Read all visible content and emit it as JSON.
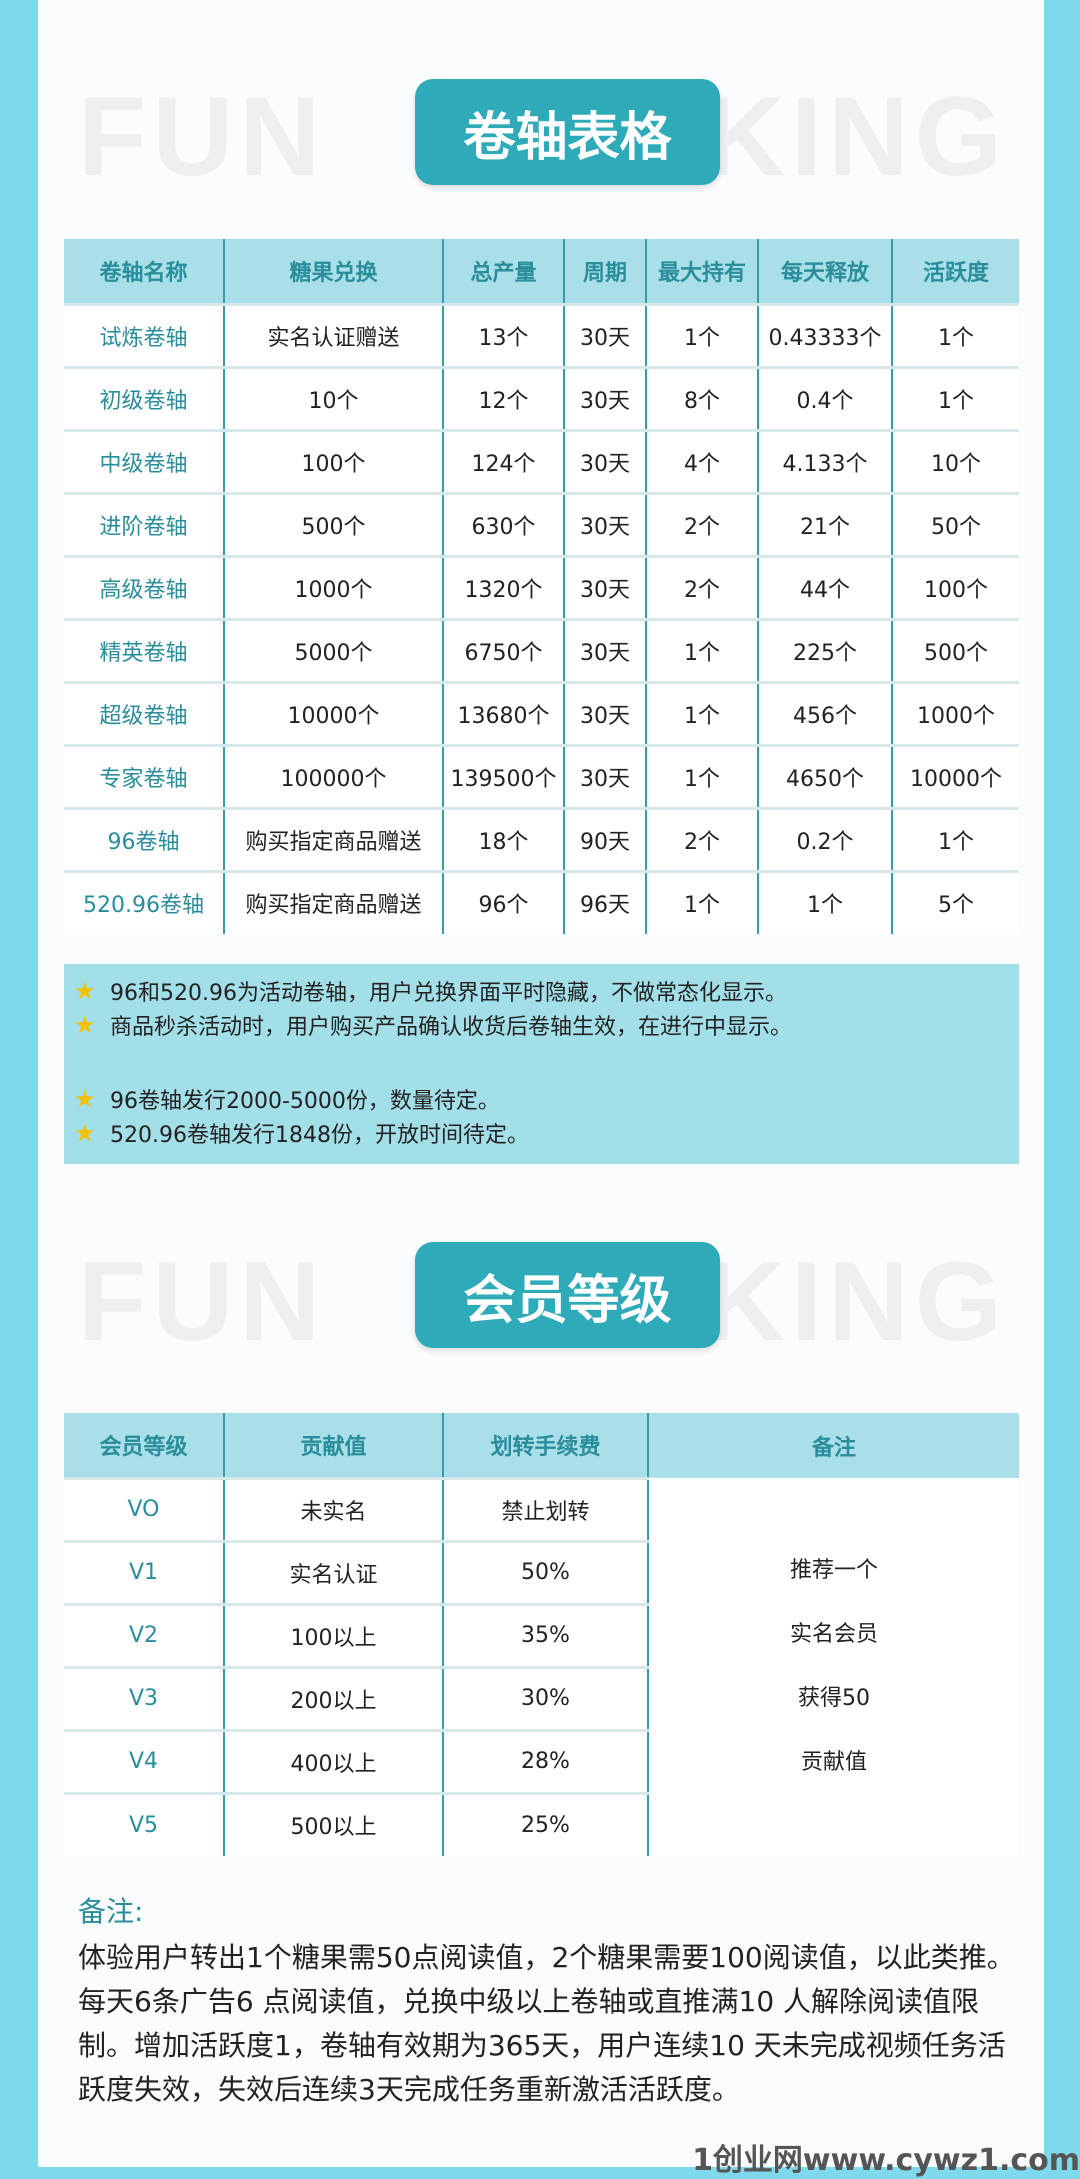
{
  "watermark": {
    "left": "FUN",
    "right": "KING"
  },
  "section1": {
    "title": "卷轴表格",
    "headers": [
      "卷轴名称",
      "糖果兑换",
      "总产量",
      "周期",
      "最大持有",
      "每天释放",
      "活跃度"
    ],
    "rows": [
      [
        "试炼卷轴",
        "实名认证赠送",
        "13个",
        "30天",
        "1个",
        "0.43333个",
        "1个"
      ],
      [
        "初级卷轴",
        "10个",
        "12个",
        "30天",
        "8个",
        "0.4个",
        "1个"
      ],
      [
        "中级卷轴",
        "100个",
        "124个",
        "30天",
        "4个",
        "4.133个",
        "10个"
      ],
      [
        "进阶卷轴",
        "500个",
        "630个",
        "30天",
        "2个",
        "21个",
        "50个"
      ],
      [
        "高级卷轴",
        "1000个",
        "1320个",
        "30天",
        "2个",
        "44个",
        "100个"
      ],
      [
        "精英卷轴",
        "5000个",
        "6750个",
        "30天",
        "1个",
        "225个",
        "500个"
      ],
      [
        "超级卷轴",
        "10000个",
        "13680个",
        "30天",
        "1个",
        "456个",
        "1000个"
      ],
      [
        "专家卷轴",
        "100000个",
        "139500个",
        "30天",
        "1个",
        "4650个",
        "10000个"
      ],
      [
        "96卷轴",
        "购买指定商品赠送",
        "18个",
        "90天",
        "2个",
        "0.2个",
        "1个"
      ],
      [
        "520.96卷轴",
        "购买指定商品赠送",
        "96个",
        "96天",
        "1个",
        "1个",
        "5个"
      ]
    ],
    "notes": [
      "96和520.96为活动卷轴，用户兑换界面平时隐藏，不做常态化显示。",
      "商品秒杀活动时，用户购买产品确认收货后卷轴生效，在进行中显示。",
      "96卷轴发行2000-5000份，数量待定。",
      "520.96卷轴发行1848份，开放时间待定。"
    ]
  },
  "section2": {
    "title": "会员等级",
    "headers": [
      "会员等级",
      "贡献值",
      "划转手续费",
      "备注"
    ],
    "rows": [
      [
        "VO",
        "未实名",
        "禁止划转"
      ],
      [
        "V1",
        "实名认证",
        "50%"
      ],
      [
        "V2",
        "100以上",
        "35%"
      ],
      [
        "V3",
        "200以上",
        "30%"
      ],
      [
        "V4",
        "400以上",
        "28%"
      ],
      [
        "V5",
        "500以上",
        "25%"
      ]
    ],
    "remark_cell": [
      "推荐一个",
      "实名会员",
      "获得50",
      "贡献值"
    ]
  },
  "remarks": {
    "label": "备注:",
    "text": "体验用户转出1个糖果需50点阅读值，2个糖果需要100阅读值，以此类推。每天6条广告6 点阅读值，兑换中级以上卷轴或直推满10 人解除阅读值限制。增加活跃度1，卷轴有效期为365天，用户连续10 天未完成视频任务活跃度失效，失效后连续3天完成任务重新激活活跃度。"
  },
  "footer": "1创业网www.cywz1.com",
  "colors": {
    "accent": "#2eaab8",
    "border": "#7fd9ec",
    "header_bg": "#a8dfe8"
  }
}
